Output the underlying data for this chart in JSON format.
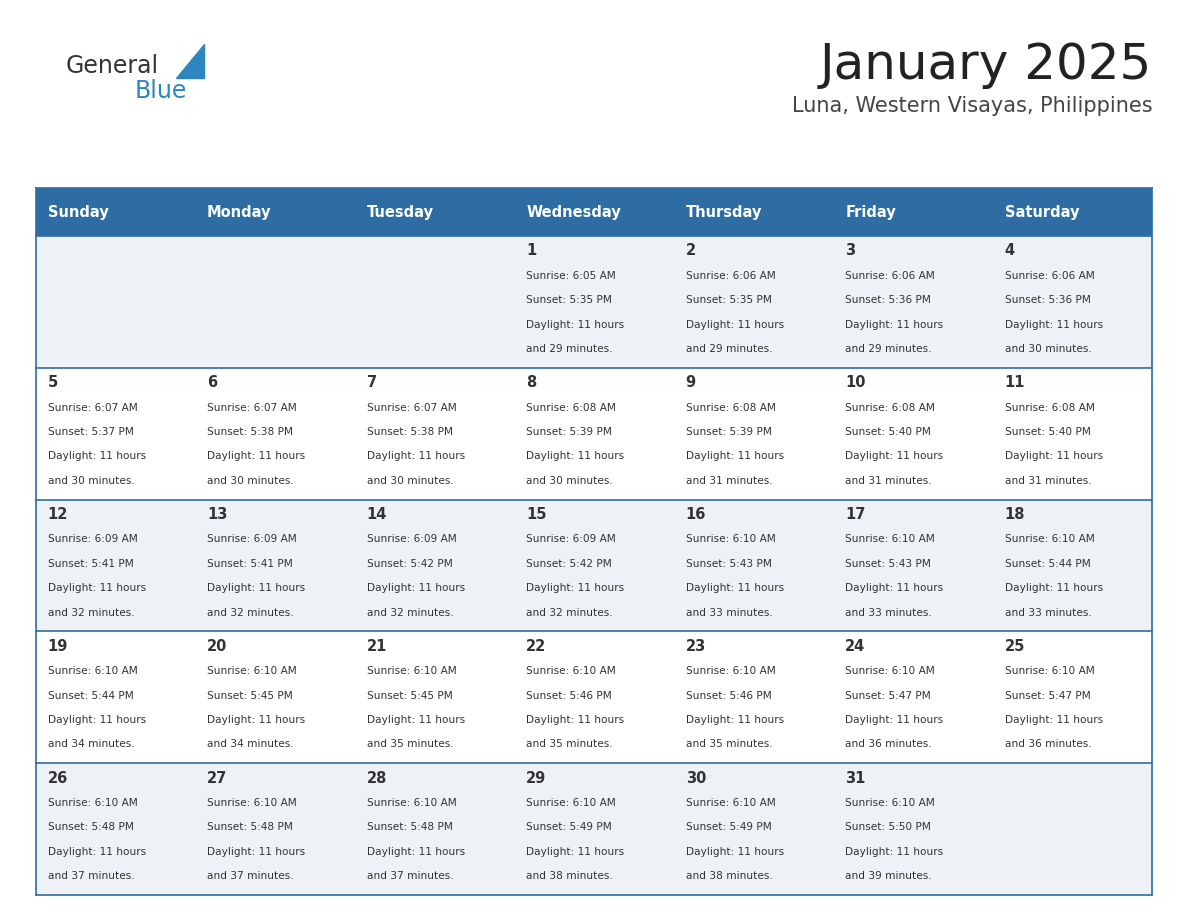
{
  "title": "January 2025",
  "subtitle": "Luna, Western Visayas, Philippines",
  "header_bg": "#2E6DA4",
  "header_text": "#FFFFFF",
  "row_bg_odd": "#FFFFFF",
  "row_bg_even": "#EEF2F7",
  "cell_text": "#333333",
  "day_number_color": "#333333",
  "separator_color": "#2E6DA4",
  "days_of_week": [
    "Sunday",
    "Monday",
    "Tuesday",
    "Wednesday",
    "Thursday",
    "Friday",
    "Saturday"
  ],
  "logo_general_color": "#333333",
  "logo_blue_color": "#2E86C1",
  "logo_triangle_color": "#2E86C1",
  "calendar_data": [
    [
      null,
      null,
      null,
      {
        "day": 1,
        "sunrise": "6:05 AM",
        "sunset": "5:35 PM",
        "daylight": "11 hours and 29 minutes."
      },
      {
        "day": 2,
        "sunrise": "6:06 AM",
        "sunset": "5:35 PM",
        "daylight": "11 hours and 29 minutes."
      },
      {
        "day": 3,
        "sunrise": "6:06 AM",
        "sunset": "5:36 PM",
        "daylight": "11 hours and 29 minutes."
      },
      {
        "day": 4,
        "sunrise": "6:06 AM",
        "sunset": "5:36 PM",
        "daylight": "11 hours and 30 minutes."
      }
    ],
    [
      {
        "day": 5,
        "sunrise": "6:07 AM",
        "sunset": "5:37 PM",
        "daylight": "11 hours and 30 minutes."
      },
      {
        "day": 6,
        "sunrise": "6:07 AM",
        "sunset": "5:38 PM",
        "daylight": "11 hours and 30 minutes."
      },
      {
        "day": 7,
        "sunrise": "6:07 AM",
        "sunset": "5:38 PM",
        "daylight": "11 hours and 30 minutes."
      },
      {
        "day": 8,
        "sunrise": "6:08 AM",
        "sunset": "5:39 PM",
        "daylight": "11 hours and 30 minutes."
      },
      {
        "day": 9,
        "sunrise": "6:08 AM",
        "sunset": "5:39 PM",
        "daylight": "11 hours and 31 minutes."
      },
      {
        "day": 10,
        "sunrise": "6:08 AM",
        "sunset": "5:40 PM",
        "daylight": "11 hours and 31 minutes."
      },
      {
        "day": 11,
        "sunrise": "6:08 AM",
        "sunset": "5:40 PM",
        "daylight": "11 hours and 31 minutes."
      }
    ],
    [
      {
        "day": 12,
        "sunrise": "6:09 AM",
        "sunset": "5:41 PM",
        "daylight": "11 hours and 32 minutes."
      },
      {
        "day": 13,
        "sunrise": "6:09 AM",
        "sunset": "5:41 PM",
        "daylight": "11 hours and 32 minutes."
      },
      {
        "day": 14,
        "sunrise": "6:09 AM",
        "sunset": "5:42 PM",
        "daylight": "11 hours and 32 minutes."
      },
      {
        "day": 15,
        "sunrise": "6:09 AM",
        "sunset": "5:42 PM",
        "daylight": "11 hours and 32 minutes."
      },
      {
        "day": 16,
        "sunrise": "6:10 AM",
        "sunset": "5:43 PM",
        "daylight": "11 hours and 33 minutes."
      },
      {
        "day": 17,
        "sunrise": "6:10 AM",
        "sunset": "5:43 PM",
        "daylight": "11 hours and 33 minutes."
      },
      {
        "day": 18,
        "sunrise": "6:10 AM",
        "sunset": "5:44 PM",
        "daylight": "11 hours and 33 minutes."
      }
    ],
    [
      {
        "day": 19,
        "sunrise": "6:10 AM",
        "sunset": "5:44 PM",
        "daylight": "11 hours and 34 minutes."
      },
      {
        "day": 20,
        "sunrise": "6:10 AM",
        "sunset": "5:45 PM",
        "daylight": "11 hours and 34 minutes."
      },
      {
        "day": 21,
        "sunrise": "6:10 AM",
        "sunset": "5:45 PM",
        "daylight": "11 hours and 35 minutes."
      },
      {
        "day": 22,
        "sunrise": "6:10 AM",
        "sunset": "5:46 PM",
        "daylight": "11 hours and 35 minutes."
      },
      {
        "day": 23,
        "sunrise": "6:10 AM",
        "sunset": "5:46 PM",
        "daylight": "11 hours and 35 minutes."
      },
      {
        "day": 24,
        "sunrise": "6:10 AM",
        "sunset": "5:47 PM",
        "daylight": "11 hours and 36 minutes."
      },
      {
        "day": 25,
        "sunrise": "6:10 AM",
        "sunset": "5:47 PM",
        "daylight": "11 hours and 36 minutes."
      }
    ],
    [
      {
        "day": 26,
        "sunrise": "6:10 AM",
        "sunset": "5:48 PM",
        "daylight": "11 hours and 37 minutes."
      },
      {
        "day": 27,
        "sunrise": "6:10 AM",
        "sunset": "5:48 PM",
        "daylight": "11 hours and 37 minutes."
      },
      {
        "day": 28,
        "sunrise": "6:10 AM",
        "sunset": "5:48 PM",
        "daylight": "11 hours and 37 minutes."
      },
      {
        "day": 29,
        "sunrise": "6:10 AM",
        "sunset": "5:49 PM",
        "daylight": "11 hours and 38 minutes."
      },
      {
        "day": 30,
        "sunrise": "6:10 AM",
        "sunset": "5:49 PM",
        "daylight": "11 hours and 38 minutes."
      },
      {
        "day": 31,
        "sunrise": "6:10 AM",
        "sunset": "5:50 PM",
        "daylight": "11 hours and 39 minutes."
      },
      null
    ]
  ]
}
